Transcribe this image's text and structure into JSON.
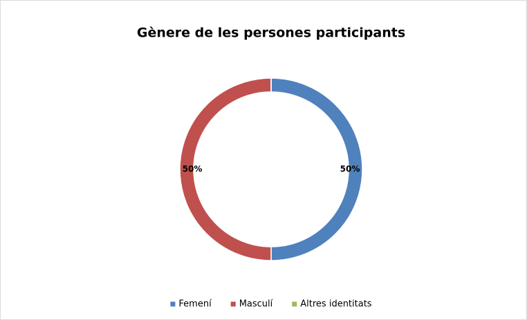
{
  "chart_data": {
    "type": "doughnut",
    "title": "Gènere de les persones participants",
    "categories": [
      "Femení",
      "Masculí",
      "Altres identitats"
    ],
    "values": [
      50,
      50,
      0
    ],
    "value_labels": [
      "50%",
      "50%",
      null
    ],
    "colors": [
      "#4f81bd",
      "#c0504d",
      "#9bbb59"
    ],
    "legend": "bottom"
  }
}
